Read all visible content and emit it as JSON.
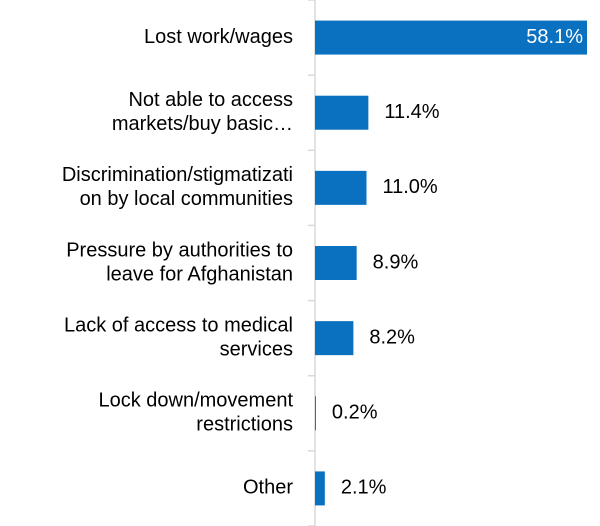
{
  "chart_data": {
    "type": "bar",
    "orientation": "horizontal",
    "categories": [
      [
        "Lost work/wages"
      ],
      [
        "Not able to access",
        "markets/buy basic…"
      ],
      [
        "Discrimination/stigmatizati",
        "on by local communities"
      ],
      [
        "Pressure by authorities to",
        "leave for Afghanistan"
      ],
      [
        "Lack of access to medical",
        "services"
      ],
      [
        "Lock down/movement",
        "restrictions"
      ],
      [
        "Other"
      ]
    ],
    "values": [
      58.1,
      11.4,
      11.0,
      8.9,
      8.2,
      0.2,
      2.1
    ],
    "value_labels": [
      "58.1%",
      "11.4%",
      "11.0%",
      "8.9%",
      "8.2%",
      "0.2%",
      "2.1%"
    ],
    "xlim": [
      0,
      58.1
    ],
    "bar_color": "#0A70C0",
    "axis_color": "#D9D9D9",
    "label_inside_color": "#FFFFFF",
    "label_outside_color": "#000000",
    "gridlines": false,
    "legend": "none"
  }
}
